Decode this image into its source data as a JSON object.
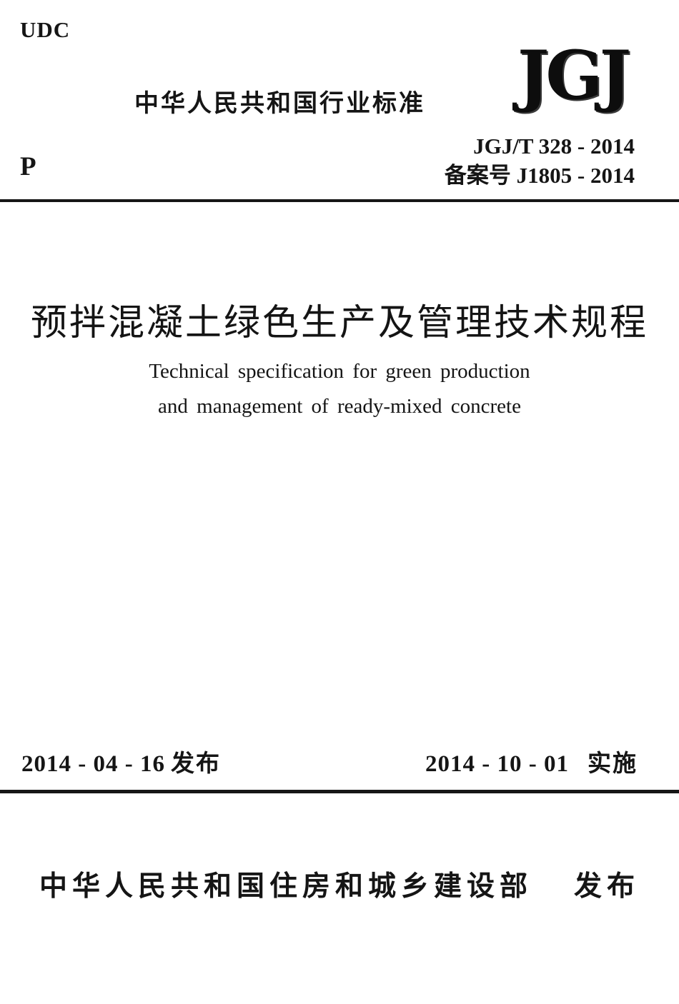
{
  "page": {
    "udc_label": "UDC",
    "p_label": "P",
    "header_title": "中华人民共和国行业标准",
    "logo_text": "JGJ",
    "standard_number": "JGJ/T 328 - 2014",
    "record_number": "备案号 J1805 - 2014",
    "title_cn": "预拌混凝土绿色生产及管理技术规程",
    "title_en_line1": "Technical specification for green production",
    "title_en_line2": "and management of  ready-mixed concrete",
    "issue_date_value": "2014 - 04 - 16",
    "issue_date_label": "发布",
    "implement_date_value": "2014 - 10 - 01",
    "implement_date_label": "实施",
    "publisher_name": "中华人民共和国住房和城乡建设部",
    "publish_label": "发布"
  },
  "colors": {
    "ink": "#151515",
    "background": "#ffffff"
  }
}
